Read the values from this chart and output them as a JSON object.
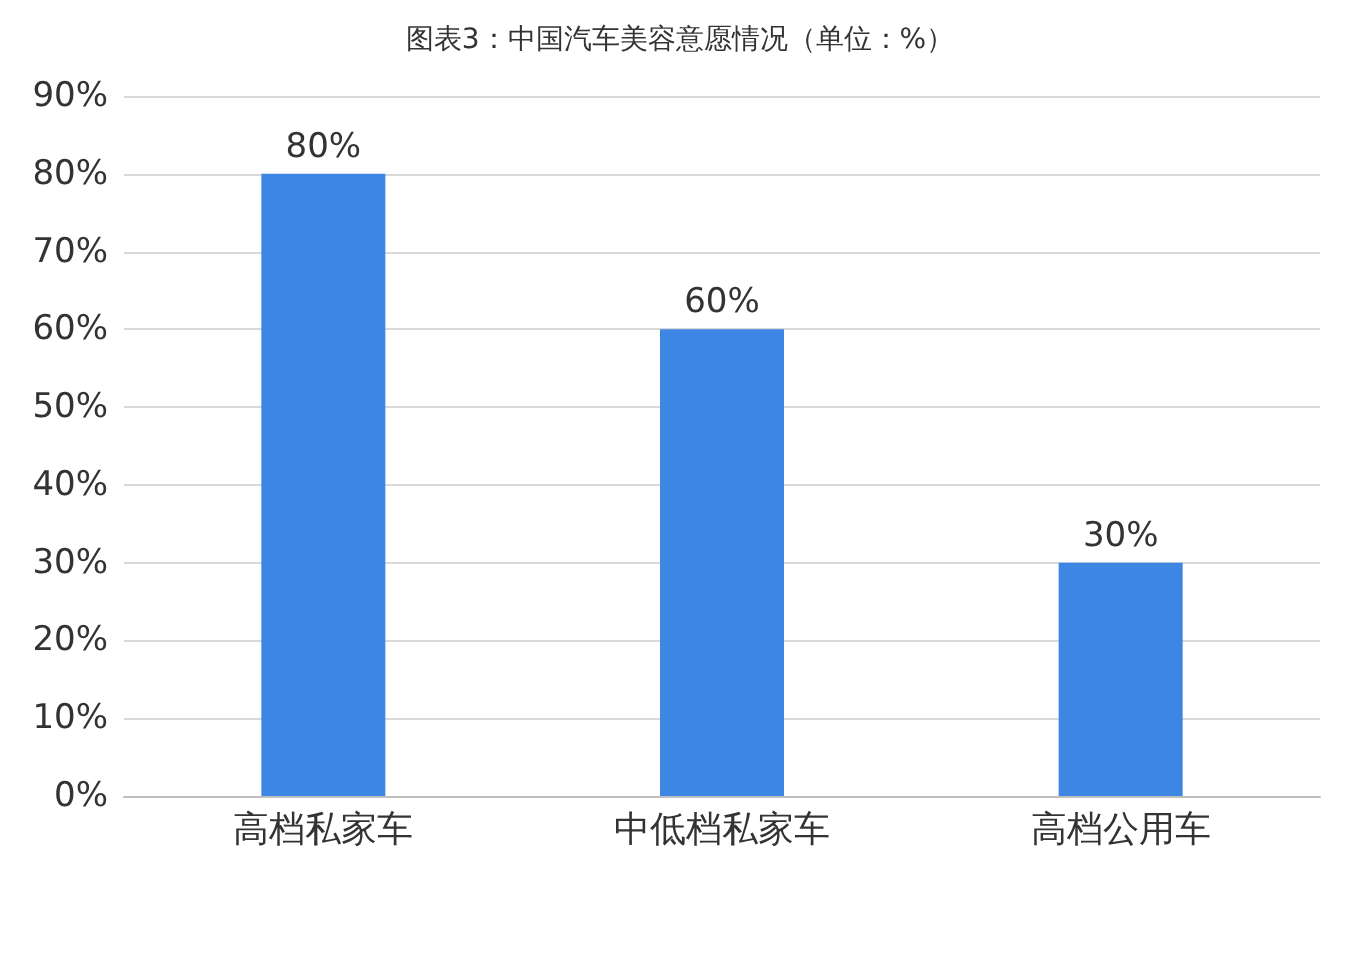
{
  "chart_data": {
    "type": "bar",
    "title": "图表3：中国汽车美容意愿情况（单位：%）",
    "categories": [
      "高档私家车",
      "中低档私家车",
      "高档公用车"
    ],
    "values": [
      80,
      60,
      30
    ],
    "color": "#3e86e4",
    "value_labels": [
      "80%",
      "60%",
      "30%"
    ],
    "ylim": [
      0,
      90
    ],
    "yticks": [
      {
        "value": 0,
        "label": "0%"
      },
      {
        "value": 10,
        "label": "10%"
      },
      {
        "value": 20,
        "label": "20%"
      },
      {
        "value": 30,
        "label": "30%"
      },
      {
        "value": 40,
        "label": "40%"
      },
      {
        "value": 50,
        "label": "50%"
      },
      {
        "value": 60,
        "label": "60%"
      },
      {
        "value": 70,
        "label": "70%"
      },
      {
        "value": 80,
        "label": "80%"
      },
      {
        "value": 90,
        "label": "90%"
      }
    ],
    "grid": "y"
  }
}
